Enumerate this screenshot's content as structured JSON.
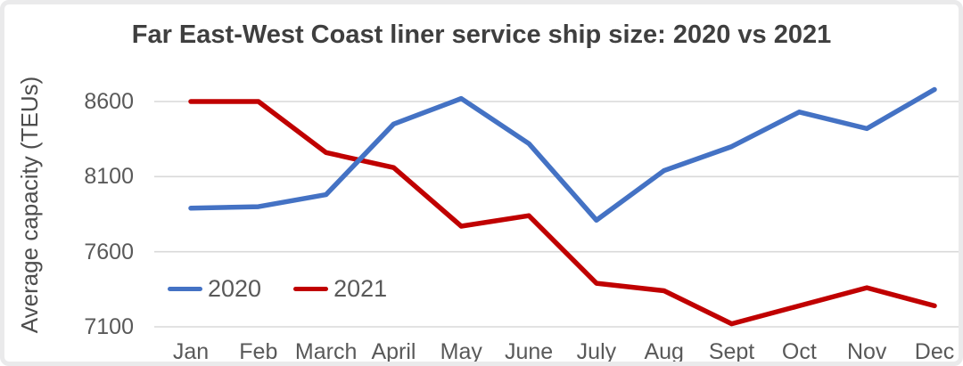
{
  "chart_data": {
    "type": "line",
    "title": "Far East-West Coast liner service ship size: 2020 vs 2021",
    "xlabel": "",
    "ylabel": "Average capacity (TEUs)",
    "categories": [
      "Jan",
      "Feb",
      "March",
      "April",
      "May",
      "June",
      "July",
      "Aug",
      "Sept",
      "Oct",
      "Nov",
      "Dec"
    ],
    "yticks": [
      7100,
      7600,
      8100,
      8600
    ],
    "ylim": [
      7000,
      8800
    ],
    "grid": true,
    "legend_position": "inside-bottom-left",
    "series": [
      {
        "name": "2020",
        "color": "#4472C4",
        "values": [
          7890,
          7900,
          7980,
          8450,
          8620,
          8320,
          7810,
          8140,
          8300,
          8530,
          8420,
          8680
        ]
      },
      {
        "name": "2021",
        "color": "#C00000",
        "values": [
          8600,
          8600,
          8260,
          8160,
          7770,
          7840,
          7390,
          7340,
          7120,
          7240,
          7360,
          7240
        ]
      }
    ],
    "colors": {
      "grid": "#D9D9D9",
      "axis_text": "#595959",
      "title_text": "#3F3F3F",
      "background": "#FFFFFF"
    }
  }
}
